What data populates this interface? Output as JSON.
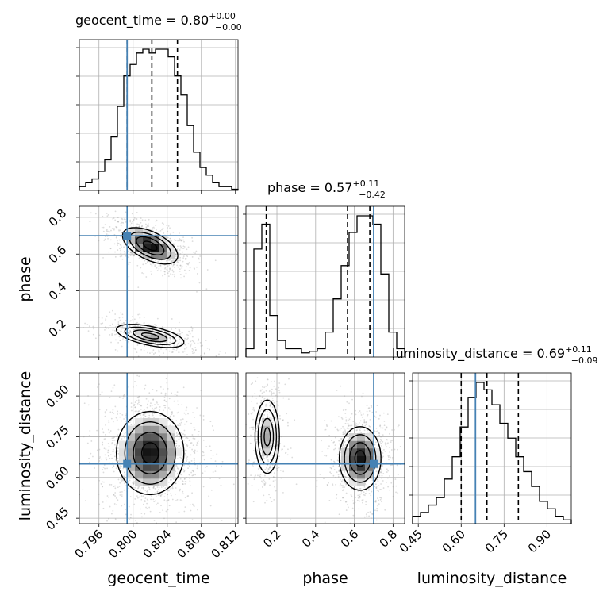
{
  "chart_data": {
    "type": "corner",
    "parameters": [
      "geocent_time",
      "phase",
      "luminosity_distance"
    ],
    "truths": {
      "geocent_time": 0.7993,
      "phase": 0.7,
      "luminosity_distance": 0.65
    },
    "truth_color": "#4682b4",
    "grid": true,
    "titles": [
      {
        "name": "geocent_time",
        "eq": " = 0.80",
        "plus": "+0.00",
        "minus": "−0.00"
      },
      {
        "name": "phase",
        "eq": " = 0.57",
        "plus": "+0.11",
        "minus": "−0.42"
      },
      {
        "name": "luminosity_distance",
        "eq": " = 0.69",
        "plus": "+0.11",
        "minus": "−0.09"
      }
    ],
    "ranges": {
      "geocent_time": [
        0.7937,
        0.8123
      ],
      "phase": [
        0.04,
        0.86
      ],
      "luminosity_distance": [
        0.43,
        0.985
      ]
    },
    "ticks": {
      "geocent_time": {
        "values": [
          0.796,
          0.8,
          0.804,
          0.808,
          0.812
        ],
        "labels": [
          "0.796",
          "0.800",
          "0.804",
          "0.808",
          "0.812"
        ]
      },
      "phase": {
        "values": [
          0.2,
          0.4,
          0.6,
          0.8
        ],
        "labels": [
          "0.2",
          "0.4",
          "0.6",
          "0.8"
        ]
      },
      "luminosity_distance": {
        "values": [
          0.45,
          0.6,
          0.75,
          0.9
        ],
        "labels": [
          "0.45",
          "0.60",
          "0.75",
          "0.90"
        ]
      }
    },
    "quantiles": {
      "geocent_time": [
        0.7993,
        0.8022,
        0.8052
      ],
      "phase": [
        0.145,
        0.565,
        0.68
      ],
      "luminosity_distance": [
        0.6,
        0.69,
        0.8
      ]
    },
    "histograms": {
      "geocent_time": [
        1,
        2,
        3,
        5,
        8,
        14,
        22,
        30,
        33,
        36,
        37,
        36,
        37,
        37,
        35,
        30,
        25,
        17,
        10,
        6,
        4,
        2,
        1,
        1,
        0.3
      ],
      "phase": [
        1,
        13,
        16,
        5,
        2,
        1,
        1,
        0.5,
        0.7,
        1,
        3,
        7,
        11,
        15,
        17,
        17,
        16,
        10,
        3,
        1
      ],
      "luminosity_distance": [
        2,
        3,
        5,
        7,
        12,
        18,
        26,
        34,
        38,
        36,
        32,
        27,
        23,
        18,
        14,
        10,
        6,
        4,
        2,
        1
      ]
    },
    "axis_labels": {
      "x": [
        "geocent_time",
        "phase",
        "luminosity_distance"
      ],
      "y": [
        "phase",
        "luminosity_distance"
      ]
    }
  }
}
